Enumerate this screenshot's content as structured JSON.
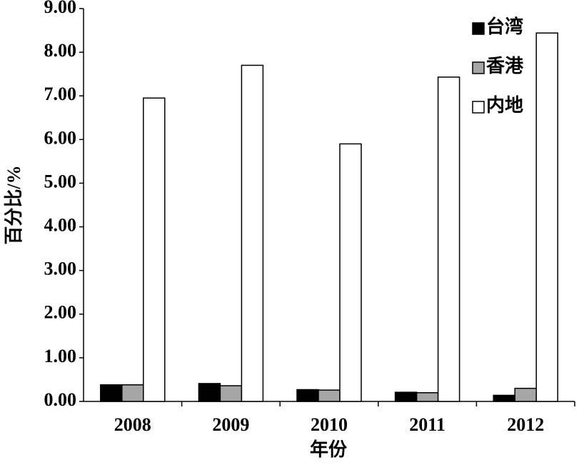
{
  "chart_data": {
    "type": "bar",
    "x_label": "年份",
    "y_label": "百分比/%",
    "categories": [
      "2008",
      "2009",
      "2010",
      "2011",
      "2012"
    ],
    "series": [
      {
        "name": "台湾",
        "color": "#000000",
        "values": [
          0.38,
          0.41,
          0.27,
          0.21,
          0.14
        ]
      },
      {
        "name": "香港",
        "color": "#a6a6a6",
        "values": [
          0.38,
          0.36,
          0.26,
          0.2,
          0.3
        ]
      },
      {
        "name": "内地",
        "color": "#ffffff",
        "values": [
          6.95,
          7.7,
          5.9,
          7.43,
          8.44
        ]
      }
    ],
    "ylim": [
      0,
      9
    ],
    "yticks": [
      {
        "value": 0,
        "label": "0.00"
      },
      {
        "value": 1,
        "label": "1.00"
      },
      {
        "value": 2,
        "label": "2.00"
      },
      {
        "value": 3,
        "label": "3.00"
      },
      {
        "value": 4,
        "label": "4.00"
      },
      {
        "value": 5,
        "label": "5.00"
      },
      {
        "value": 6,
        "label": "6.00"
      },
      {
        "value": 7,
        "label": "7.00"
      },
      {
        "value": 8,
        "label": "8.00"
      },
      {
        "value": 9,
        "label": "9.00"
      }
    ],
    "grid": false,
    "legend": "upper right"
  }
}
